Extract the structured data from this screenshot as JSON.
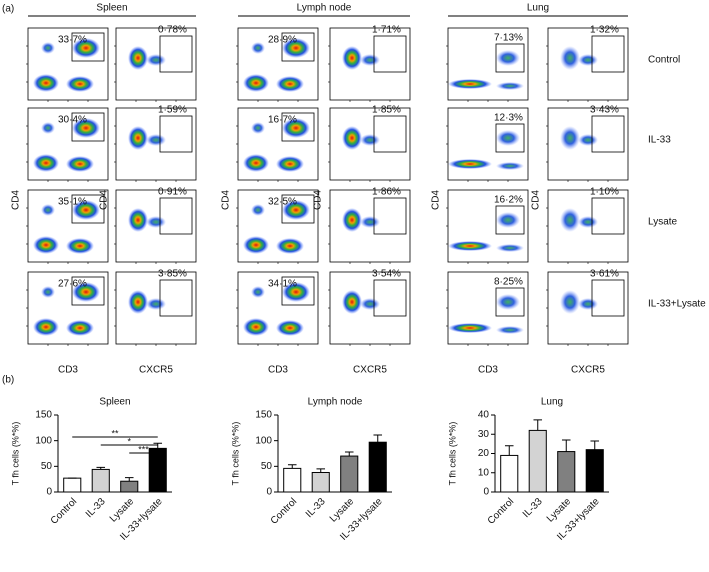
{
  "flow_panel": {
    "label": "(a)",
    "x_labels": [
      "CD3",
      "CXCR5"
    ],
    "y_label": "CD4",
    "conditions": [
      "Control",
      "IL-33",
      "Lysate",
      "IL-33+Lysate"
    ],
    "tissues": [
      {
        "name": "Spleen",
        "cd3": [
          "33·7%",
          "30·4%",
          "35·1%",
          "27·6%"
        ],
        "cxcr5": [
          "0·78%",
          "1·59%",
          "0·91%",
          "3·85%"
        ]
      },
      {
        "name": "Lymph node",
        "cd3": [
          "28·9%",
          "16·7%",
          "32·5%",
          "34·1%"
        ],
        "cxcr5": [
          "1·71%",
          "1·85%",
          "1·86%",
          "3·54%"
        ]
      },
      {
        "name": "Lung",
        "cd3": [
          "7·13%",
          "12·3%",
          "16·2%",
          "8·25%"
        ],
        "cxcr5": [
          "1·32%",
          "3·43%",
          "1·10%",
          "3·61%"
        ]
      }
    ]
  },
  "panel_b_label": "(b)",
  "chart_data": [
    {
      "type": "bar",
      "title": "Spleen",
      "y_label": "T fh cells (%*%)",
      "categories": [
        "Control",
        "IL-33",
        "Lysate",
        "IL-33+lysate"
      ],
      "values": [
        27,
        44,
        21,
        85
      ],
      "errors": [
        0,
        4,
        7,
        10
      ],
      "colors": [
        "#ffffff",
        "#d3d3d3",
        "#808080",
        "#000000"
      ],
      "ylim": [
        0,
        150
      ],
      "yticks": [
        0,
        50,
        100,
        150
      ],
      "significance": [
        {
          "label": "**",
          "from": 0,
          "to": 3
        },
        {
          "label": "*",
          "from": 1,
          "to": 3
        },
        {
          "label": "***",
          "from": 2,
          "to": 3
        }
      ]
    },
    {
      "type": "bar",
      "title": "Lymph node",
      "y_label": "T fh cells (%*%)",
      "categories": [
        "Control",
        "IL-33",
        "Lysate",
        "IL-33+lysate"
      ],
      "values": [
        46,
        38,
        70,
        97
      ],
      "errors": [
        7,
        7,
        8,
        14
      ],
      "colors": [
        "#ffffff",
        "#d3d3d3",
        "#808080",
        "#000000"
      ],
      "ylim": [
        0,
        150
      ],
      "yticks": [
        0,
        50,
        100,
        150
      ]
    },
    {
      "type": "bar",
      "title": "Lung",
      "y_label": "T fh cells (%*%)",
      "categories": [
        "Control",
        "IL-33",
        "Lysate",
        "IL-33+lysate"
      ],
      "values": [
        19,
        32,
        21,
        22
      ],
      "errors": [
        5,
        5.5,
        6,
        4.5
      ],
      "colors": [
        "#ffffff",
        "#d3d3d3",
        "#808080",
        "#000000"
      ],
      "ylim": [
        0,
        40
      ],
      "yticks": [
        0,
        10,
        20,
        30,
        40
      ]
    }
  ]
}
